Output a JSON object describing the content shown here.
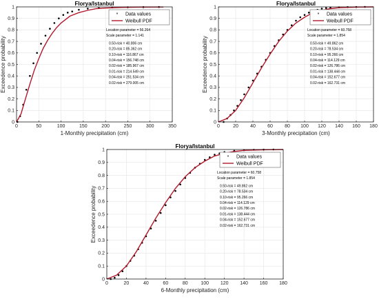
{
  "chart_data": [
    {
      "type": "line",
      "title": "Florya/Istanbul",
      "xlabel": "1-Monthly precipitation (cm)",
      "ylabel": "Exceedence probability",
      "xlim": [
        0,
        350
      ],
      "ylim": [
        0,
        1
      ],
      "xticks": [
        "0",
        "50",
        "100",
        "150",
        "200",
        "250",
        "300",
        "350"
      ],
      "yticks": [
        "0",
        "0.1",
        "0.2",
        "0.3",
        "0.4",
        "0.5",
        "0.6",
        "0.7",
        "0.8",
        "0.9",
        "1"
      ],
      "grid": true,
      "legend_position": "top-right",
      "series": [
        {
          "name": "Data values",
          "style": "markers",
          "x": [
            2,
            8,
            15,
            22,
            30,
            38,
            46,
            55,
            65,
            75,
            85,
            95,
            105,
            115,
            125,
            140,
            160,
            185,
            215,
            250,
            285,
            320
          ],
          "y": [
            0.0,
            0.05,
            0.15,
            0.28,
            0.4,
            0.51,
            0.6,
            0.68,
            0.75,
            0.81,
            0.86,
            0.9,
            0.93,
            0.95,
            0.96,
            0.975,
            0.985,
            0.99,
            0.995,
            0.997,
            0.998,
            0.999
          ]
        },
        {
          "name": "Weibull PDF",
          "style": "line",
          "x": [
            0,
            10,
            20,
            30,
            40,
            50,
            60,
            70,
            80,
            90,
            100,
            120,
            140,
            160,
            180,
            200,
            240,
            280,
            330
          ],
          "y": [
            0.0,
            0.07,
            0.2,
            0.33,
            0.45,
            0.55,
            0.64,
            0.71,
            0.77,
            0.82,
            0.86,
            0.92,
            0.95,
            0.97,
            0.985,
            0.99,
            0.996,
            0.998,
            0.999
          ]
        }
      ],
      "annotations": [
        "Location parameter = 56.264",
        "Scale   parameter   = 1.141",
        "0.50-risk  =  40.806  cm",
        "0.20-risk  =  85.362  cm",
        "0.10-risk  =  116.867  cm",
        "0.04-risk  =  156.748  cm",
        "0.02-risk  =  185.967  cm",
        "0.01-risk  =  214.549  cm",
        "0.04-risk  =  251.534  cm",
        "0.02-risk  =  279.005  cm"
      ]
    },
    {
      "type": "line",
      "title": "Florya/Istanbul",
      "xlabel": "3-Monthly precipitation (cm)",
      "ylabel": "Exceedence probability",
      "xlim": [
        0,
        180
      ],
      "ylim": [
        0,
        1
      ],
      "xticks": [
        "0",
        "20",
        "40",
        "60",
        "80",
        "100",
        "120",
        "140",
        "160",
        "180"
      ],
      "yticks": [
        "0",
        "0.1",
        "0.2",
        "0.3",
        "0.4",
        "0.5",
        "0.6",
        "0.7",
        "0.8",
        "0.9",
        "1"
      ],
      "grid": true,
      "legend_position": "top-right",
      "series": [
        {
          "name": "Data values",
          "style": "markers",
          "x": [
            6,
            10,
            14,
            18,
            22,
            26,
            30,
            35,
            40,
            45,
            50,
            55,
            60,
            65,
            70,
            75,
            80,
            85,
            90,
            95,
            100,
            105,
            110,
            115,
            120,
            125,
            130,
            140,
            150,
            160,
            170
          ],
          "y": [
            0.0,
            0.03,
            0.06,
            0.1,
            0.14,
            0.19,
            0.24,
            0.3,
            0.36,
            0.42,
            0.48,
            0.54,
            0.6,
            0.66,
            0.71,
            0.76,
            0.8,
            0.84,
            0.88,
            0.91,
            0.93,
            0.95,
            0.965,
            0.975,
            0.985,
            0.99,
            0.993,
            0.996,
            0.998,
            0.999,
            1.0
          ]
        },
        {
          "name": "Weibull PDF",
          "style": "line",
          "x": [
            0,
            10,
            20,
            30,
            40,
            50,
            60,
            70,
            80,
            90,
            100,
            110,
            120,
            130,
            140,
            160,
            180
          ],
          "y": [
            0.0,
            0.03,
            0.1,
            0.21,
            0.34,
            0.47,
            0.59,
            0.7,
            0.79,
            0.86,
            0.91,
            0.95,
            0.97,
            0.985,
            0.993,
            0.998,
            1.0
          ]
        }
      ],
      "annotations": [
        "Location parameter = 60.758",
        "Scale   parameter   = 1.854",
        "0.50-risk  =  49.862  cm",
        "0.20-risk  =  78.534  cm",
        "0.10-risk  =  95.266  cm",
        "0.04-risk  =  114.129  cm",
        "0.02-risk  =  126.786  cm",
        "0.01-risk  =  138.444  cm",
        "0.04-risk  =  152.677  cm",
        "0.02-risk  =  162.731  cm"
      ]
    },
    {
      "type": "line",
      "title": "Florya/Istanbul",
      "xlabel": "6-Monthly precipitation (cm)",
      "ylabel": "Exceedence probability",
      "xlim": [
        0,
        180
      ],
      "ylim": [
        0,
        1
      ],
      "xticks": [
        "0",
        "20",
        "40",
        "60",
        "80",
        "100",
        "120",
        "140",
        "160",
        "180"
      ],
      "yticks": [
        "0",
        "0.1",
        "0.2",
        "0.3",
        "0.4",
        "0.5",
        "0.6",
        "0.7",
        "0.8",
        "0.9",
        "1"
      ],
      "grid": true,
      "legend_position": "top-right",
      "series": [
        {
          "name": "Data values",
          "style": "markers",
          "x": [
            4,
            8,
            12,
            16,
            20,
            24,
            28,
            32,
            36,
            40,
            45,
            50,
            55,
            60,
            65,
            70,
            75,
            80,
            85,
            90,
            95,
            100,
            105,
            110,
            115,
            120,
            130,
            140,
            150,
            160,
            170
          ],
          "y": [
            0.0,
            0.01,
            0.03,
            0.06,
            0.1,
            0.14,
            0.18,
            0.23,
            0.28,
            0.33,
            0.39,
            0.45,
            0.51,
            0.57,
            0.63,
            0.68,
            0.73,
            0.78,
            0.82,
            0.86,
            0.89,
            0.92,
            0.94,
            0.96,
            0.97,
            0.98,
            0.99,
            0.995,
            0.998,
            0.999,
            1.0
          ]
        },
        {
          "name": "Weibull PDF",
          "style": "line",
          "x": [
            0,
            10,
            20,
            30,
            40,
            50,
            60,
            70,
            80,
            90,
            100,
            110,
            120,
            130,
            140,
            160,
            180
          ],
          "y": [
            0.0,
            0.03,
            0.1,
            0.21,
            0.34,
            0.47,
            0.59,
            0.7,
            0.79,
            0.86,
            0.91,
            0.95,
            0.97,
            0.985,
            0.993,
            0.998,
            1.0
          ]
        }
      ],
      "annotations": [
        "Location parameter = 60.758",
        "Scale   parameter   = 1.854",
        "0.50-risk  =  49.862  cm",
        "0.20-risk  =  78.534  cm",
        "0.10-risk  =  95.266  cm",
        "0.04-risk  =  114.129  cm",
        "0.02-risk  =  126.786  cm",
        "0.01-risk  =  138.444  cm",
        "0.04-risk  =  152.677  cm",
        "0.02-risk  =  162.731  cm"
      ]
    }
  ],
  "colors": {
    "data_marker": "#000000",
    "weibull_line": "#b2182b",
    "grid": "#e4e4e4",
    "axis": "#000000"
  }
}
